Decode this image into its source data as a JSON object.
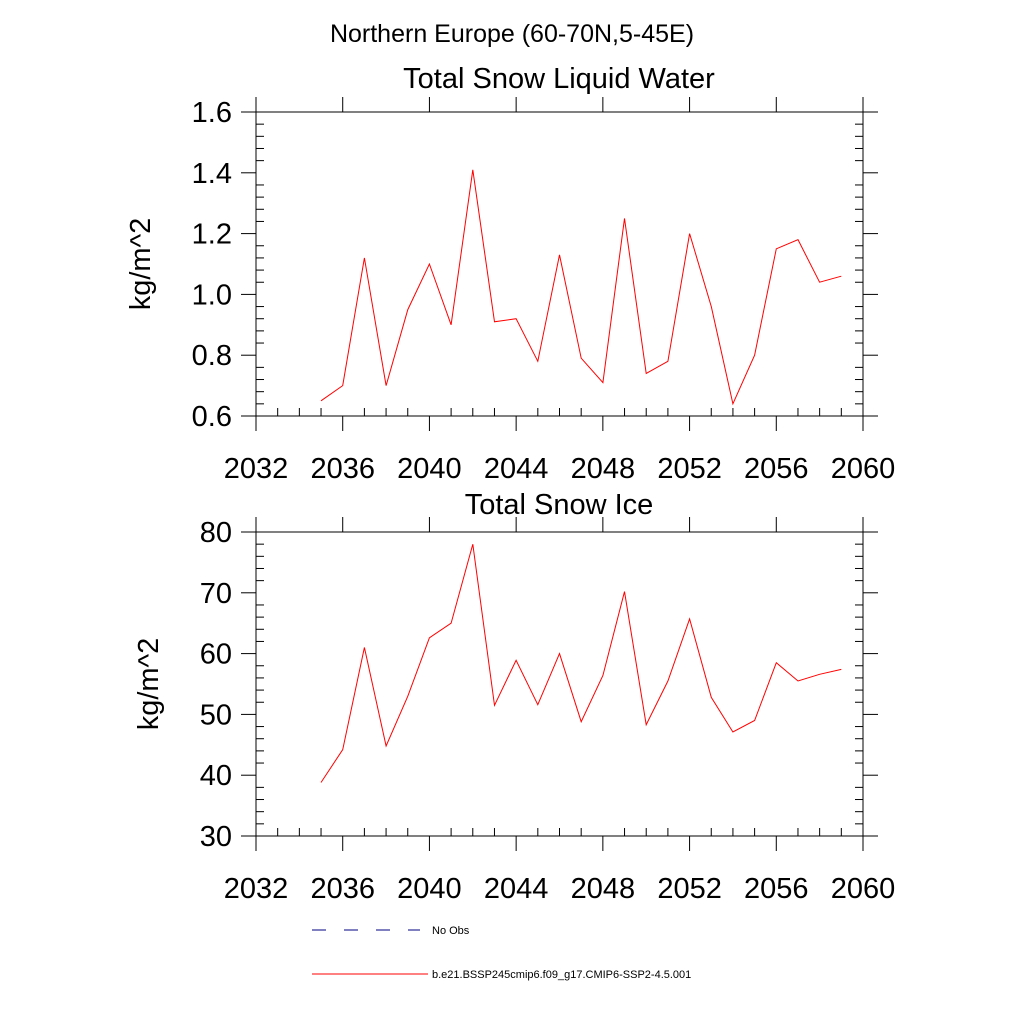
{
  "figure": {
    "supertitle": "Northern Europe (60-70N,5-45E)"
  },
  "legend": {
    "entries": [
      {
        "label": "No Obs",
        "color": "#000080",
        "dash": "dashed"
      },
      {
        "label": "b.e21.BSSP245cmip6.f09_g17.CMIP6-SSP2-4.5.001",
        "color": "#ff0000",
        "dash": "solid"
      }
    ]
  },
  "chart_data": [
    {
      "type": "line",
      "title": "Total Snow Liquid Water",
      "xlabel": "",
      "ylabel": "kg/m^2",
      "xlim": [
        2032,
        2060
      ],
      "ylim": [
        0.6,
        1.6
      ],
      "x_ticks": [
        2032,
        2036,
        2040,
        2044,
        2048,
        2052,
        2056,
        2060
      ],
      "y_ticks": [
        0.6,
        0.8,
        1.0,
        1.2,
        1.4,
        1.6
      ],
      "y_tick_labels": [
        "0.6",
        "0.8",
        "1.0",
        "1.2",
        "1.4",
        "1.6"
      ],
      "grid": false,
      "series": [
        {
          "color": "#ff0000",
          "x": [
            2035,
            2036,
            2037,
            2038,
            2039,
            2040,
            2041,
            2042,
            2043,
            2044,
            2045,
            2046,
            2047,
            2048,
            2049,
            2050,
            2051,
            2052,
            2053,
            2054,
            2055,
            2056,
            2057,
            2058,
            2059
          ],
          "values": [
            0.65,
            0.7,
            1.12,
            0.7,
            0.95,
            1.1,
            0.9,
            1.41,
            0.91,
            0.92,
            0.78,
            1.13,
            0.79,
            0.71,
            1.25,
            0.74,
            0.78,
            1.2,
            0.96,
            0.64,
            0.8,
            1.15,
            1.18,
            1.04,
            1.06
          ]
        }
      ]
    },
    {
      "type": "line",
      "title": "Total Snow Ice",
      "xlabel": "",
      "ylabel": "kg/m^2",
      "xlim": [
        2032,
        2060
      ],
      "ylim": [
        30,
        80
      ],
      "x_ticks": [
        2032,
        2036,
        2040,
        2044,
        2048,
        2052,
        2056,
        2060
      ],
      "y_ticks": [
        30,
        40,
        50,
        60,
        70,
        80
      ],
      "y_tick_labels": [
        "30",
        "40",
        "50",
        "60",
        "70",
        "80"
      ],
      "grid": false,
      "series": [
        {
          "color": "#ff0000",
          "x": [
            2035,
            2036,
            2037,
            2038,
            2039,
            2040,
            2041,
            2042,
            2043,
            2044,
            2045,
            2046,
            2047,
            2048,
            2049,
            2050,
            2051,
            2052,
            2053,
            2054,
            2055,
            2056,
            2057,
            2058,
            2059
          ],
          "values": [
            38.8,
            44.2,
            61.0,
            44.8,
            53.0,
            62.6,
            65.0,
            78.0,
            51.5,
            58.9,
            51.6,
            60.0,
            48.8,
            56.4,
            70.2,
            48.3,
            55.5,
            65.7,
            52.8,
            47.1,
            49.0,
            58.5,
            55.5,
            56.6,
            57.4
          ]
        }
      ]
    }
  ]
}
